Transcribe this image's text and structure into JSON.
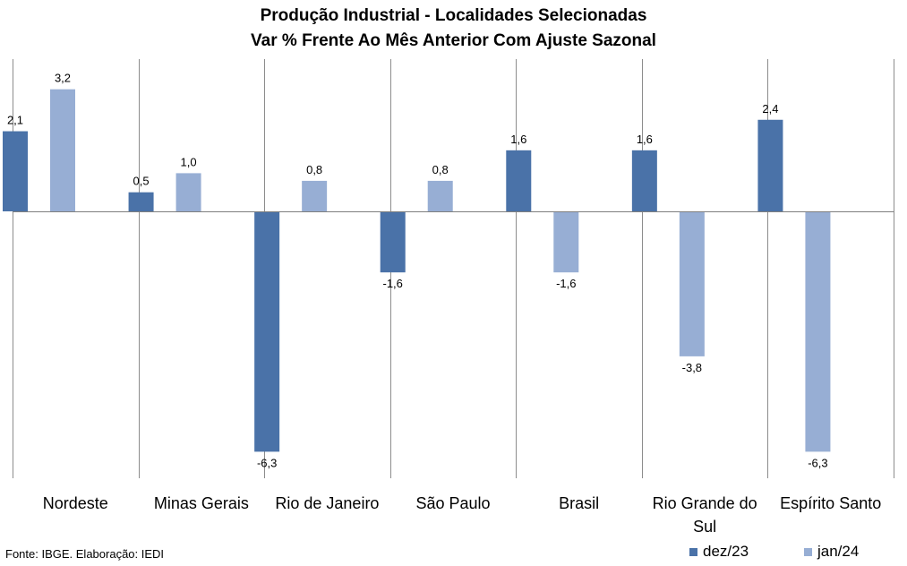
{
  "chart_data": {
    "type": "bar",
    "title": "Produção Industrial - Localidades Selecionadas",
    "subtitle": "Var % Frente Ao Mês Anterior Com Ajuste Sazonal",
    "categories": [
      "Nordeste",
      "Minas Gerais",
      "Rio de Janeiro",
      "São Paulo",
      "Brasil",
      "Rio Grande do Sul",
      "Espírito Santo"
    ],
    "series": [
      {
        "name": "dez/23",
        "color": "#4a72a8",
        "values": [
          2.1,
          0.5,
          -6.3,
          -1.6,
          1.6,
          1.6,
          2.4
        ],
        "labels": [
          "2,1",
          "0,5",
          "-6,3",
          "-1,6",
          "1,6",
          "1,6",
          "2,4"
        ]
      },
      {
        "name": "jan/24",
        "color": "#97aed4",
        "values": [
          3.2,
          1.0,
          0.8,
          0.8,
          -1.6,
          -3.8,
          -6.3
        ],
        "labels": [
          "3,2",
          "1,0",
          "0,8",
          "0,8",
          "-1,6",
          "-3,8",
          "-6,3"
        ]
      }
    ],
    "ylim": [
      -7,
      4
    ],
    "xlabel": "",
    "ylabel": "",
    "grid": false,
    "legend_position": "bottom-right"
  },
  "source": "Fonte: IBGE. Elaboração: IEDI"
}
